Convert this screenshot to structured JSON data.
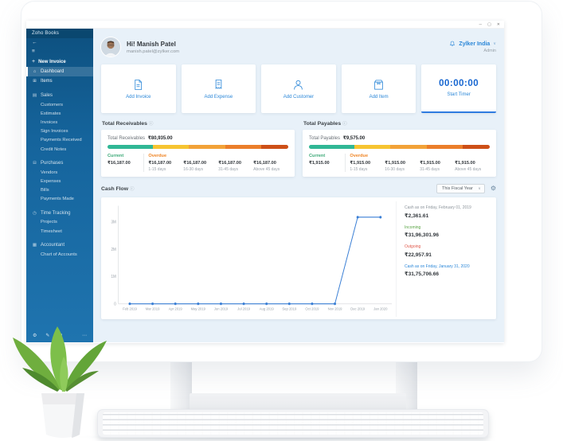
{
  "colors": {
    "accent": "#2b87d8",
    "timer_blue": "#1565d0",
    "current_green": "#3aa876",
    "overdue_orange": "#ef8525",
    "incoming_green": "#5aa545",
    "outgoing_red": "#e0584b",
    "link_blue": "#2b87d8",
    "muted_gray": "#8c949b",
    "sidebar_blue": "#15649c",
    "main_bg": "#e8f1f9"
  },
  "window": {
    "minimize": "─",
    "maximize": "▢",
    "close": "✕"
  },
  "icons": {
    "back": "←",
    "menu": "≡",
    "plus": "+",
    "home": "⌂",
    "items": "⊞",
    "sales": "▤",
    "purchases": "⊟",
    "time": "◷",
    "accountant": "▦",
    "gear": "⚙",
    "pencil": "✎",
    "flag": "⚑",
    "more": "⋯",
    "caret_down": "∨",
    "info": "ⓘ"
  },
  "sidebar": {
    "brand": "Zoho Books",
    "new_invoice": "New Invoice",
    "items": [
      "Dashboard",
      "Items"
    ],
    "sections": [
      {
        "label": "Sales",
        "children": [
          "Customers",
          "Estimates",
          "Invoices",
          "Sign Invoices",
          "Payments Received",
          "Credit Notes"
        ]
      },
      {
        "label": "Purchases",
        "children": [
          "Vendors",
          "Expenses",
          "Bills",
          "Payments Made"
        ]
      },
      {
        "label": "Time Tracking",
        "children": [
          "Projects",
          "Timesheet"
        ]
      },
      {
        "label": "Accountant",
        "children": [
          "Chart of Accounts"
        ]
      }
    ]
  },
  "header": {
    "greeting": "Hi! Manish Patel",
    "email": "manish.patel@zylker.com",
    "org": "Zylker India",
    "role": "Admin"
  },
  "quick_actions": {
    "cards": [
      {
        "label": "Add Invoice"
      },
      {
        "label": "Add Expense"
      },
      {
        "label": "Add Customer"
      },
      {
        "label": "Add Item"
      }
    ],
    "timer": {
      "time": "00:00:00",
      "label": "Start Timer"
    }
  },
  "receivables": {
    "title": "Total Receivables",
    "summary_label": "Total Receivables",
    "summary_value": "₹80,935.00",
    "current_label": "Current",
    "current_value": "₹16,187.00",
    "overdue_label": "Overdue",
    "buckets": [
      {
        "value": "₹16,187.00",
        "range": "1-15 days"
      },
      {
        "value": "₹16,187.00",
        "range": "16-30 days"
      },
      {
        "value": "₹16,187.00",
        "range": "31-45 days"
      },
      {
        "value": "₹16,187.00",
        "range": "Above 45 days"
      }
    ],
    "segments": [
      {
        "pct": 25,
        "color": "#30b795"
      },
      {
        "pct": 20,
        "color": "#f6c431"
      },
      {
        "pct": 20,
        "color": "#f2a238"
      },
      {
        "pct": 20,
        "color": "#eb7e2a"
      },
      {
        "pct": 15,
        "color": "#cd4f17"
      }
    ]
  },
  "payables": {
    "title": "Total Payables",
    "summary_label": "Total Payables",
    "summary_value": "₹9,575.00",
    "current_label": "Current",
    "current_value": "₹1,915.00",
    "overdue_label": "Overdue",
    "buckets": [
      {
        "value": "₹1,915.00",
        "range": "1-15 days"
      },
      {
        "value": "₹1,915.00",
        "range": "16-30 days"
      },
      {
        "value": "₹1,915.00",
        "range": "31-45 days"
      },
      {
        "value": "₹1,915.00",
        "range": "Above 45 days"
      }
    ],
    "segments": [
      {
        "pct": 25,
        "color": "#30b795"
      },
      {
        "pct": 20,
        "color": "#f6c431"
      },
      {
        "pct": 20,
        "color": "#f2a238"
      },
      {
        "pct": 20,
        "color": "#eb7e2a"
      },
      {
        "pct": 15,
        "color": "#cd4f17"
      }
    ]
  },
  "cashflow": {
    "title": "Cash Flow",
    "range_option": "This Fiscal Year",
    "stats": [
      {
        "label": "Cash as on Friday, February 01, 2019",
        "value": "₹2,361.61",
        "label_color": "#8c949b"
      },
      {
        "label": "Incoming",
        "value": "₹31,96,301.96",
        "label_color": "#5aa545"
      },
      {
        "label": "Outgoing",
        "value": "₹22,957.91",
        "label_color": "#e0584b"
      },
      {
        "label": "Cash as on Friday, January 31, 2020",
        "value": "₹31,75,706.66",
        "label_color": "#2b87d8"
      }
    ]
  },
  "chart_data": {
    "type": "line",
    "title": "Cash Flow",
    "x": [
      "Feb 2019",
      "Mar 2019",
      "Apr 2019",
      "May 2019",
      "Jun 2019",
      "Jul 2019",
      "Aug 2019",
      "Sep 2019",
      "Oct 2019",
      "Nov 2019",
      "Dec 2019",
      "Jan 2020"
    ],
    "series": [
      {
        "name": "Cash",
        "color": "#3a7fd5",
        "values": [
          2361.61,
          2361.61,
          2361.61,
          2361.61,
          2361.61,
          2361.61,
          2361.61,
          2361.61,
          2361.61,
          2361.61,
          3175706.66,
          3175706.66
        ]
      }
    ],
    "xlabel": "",
    "ylabel": "",
    "ylim": [
      0,
      3500000
    ],
    "yticks": [
      {
        "v": 0,
        "label": "0"
      },
      {
        "v": 1000000,
        "label": "1M"
      },
      {
        "v": 2000000,
        "label": "2M"
      },
      {
        "v": 3000000,
        "label": "3M"
      }
    ],
    "grid": false,
    "legend": "none"
  }
}
